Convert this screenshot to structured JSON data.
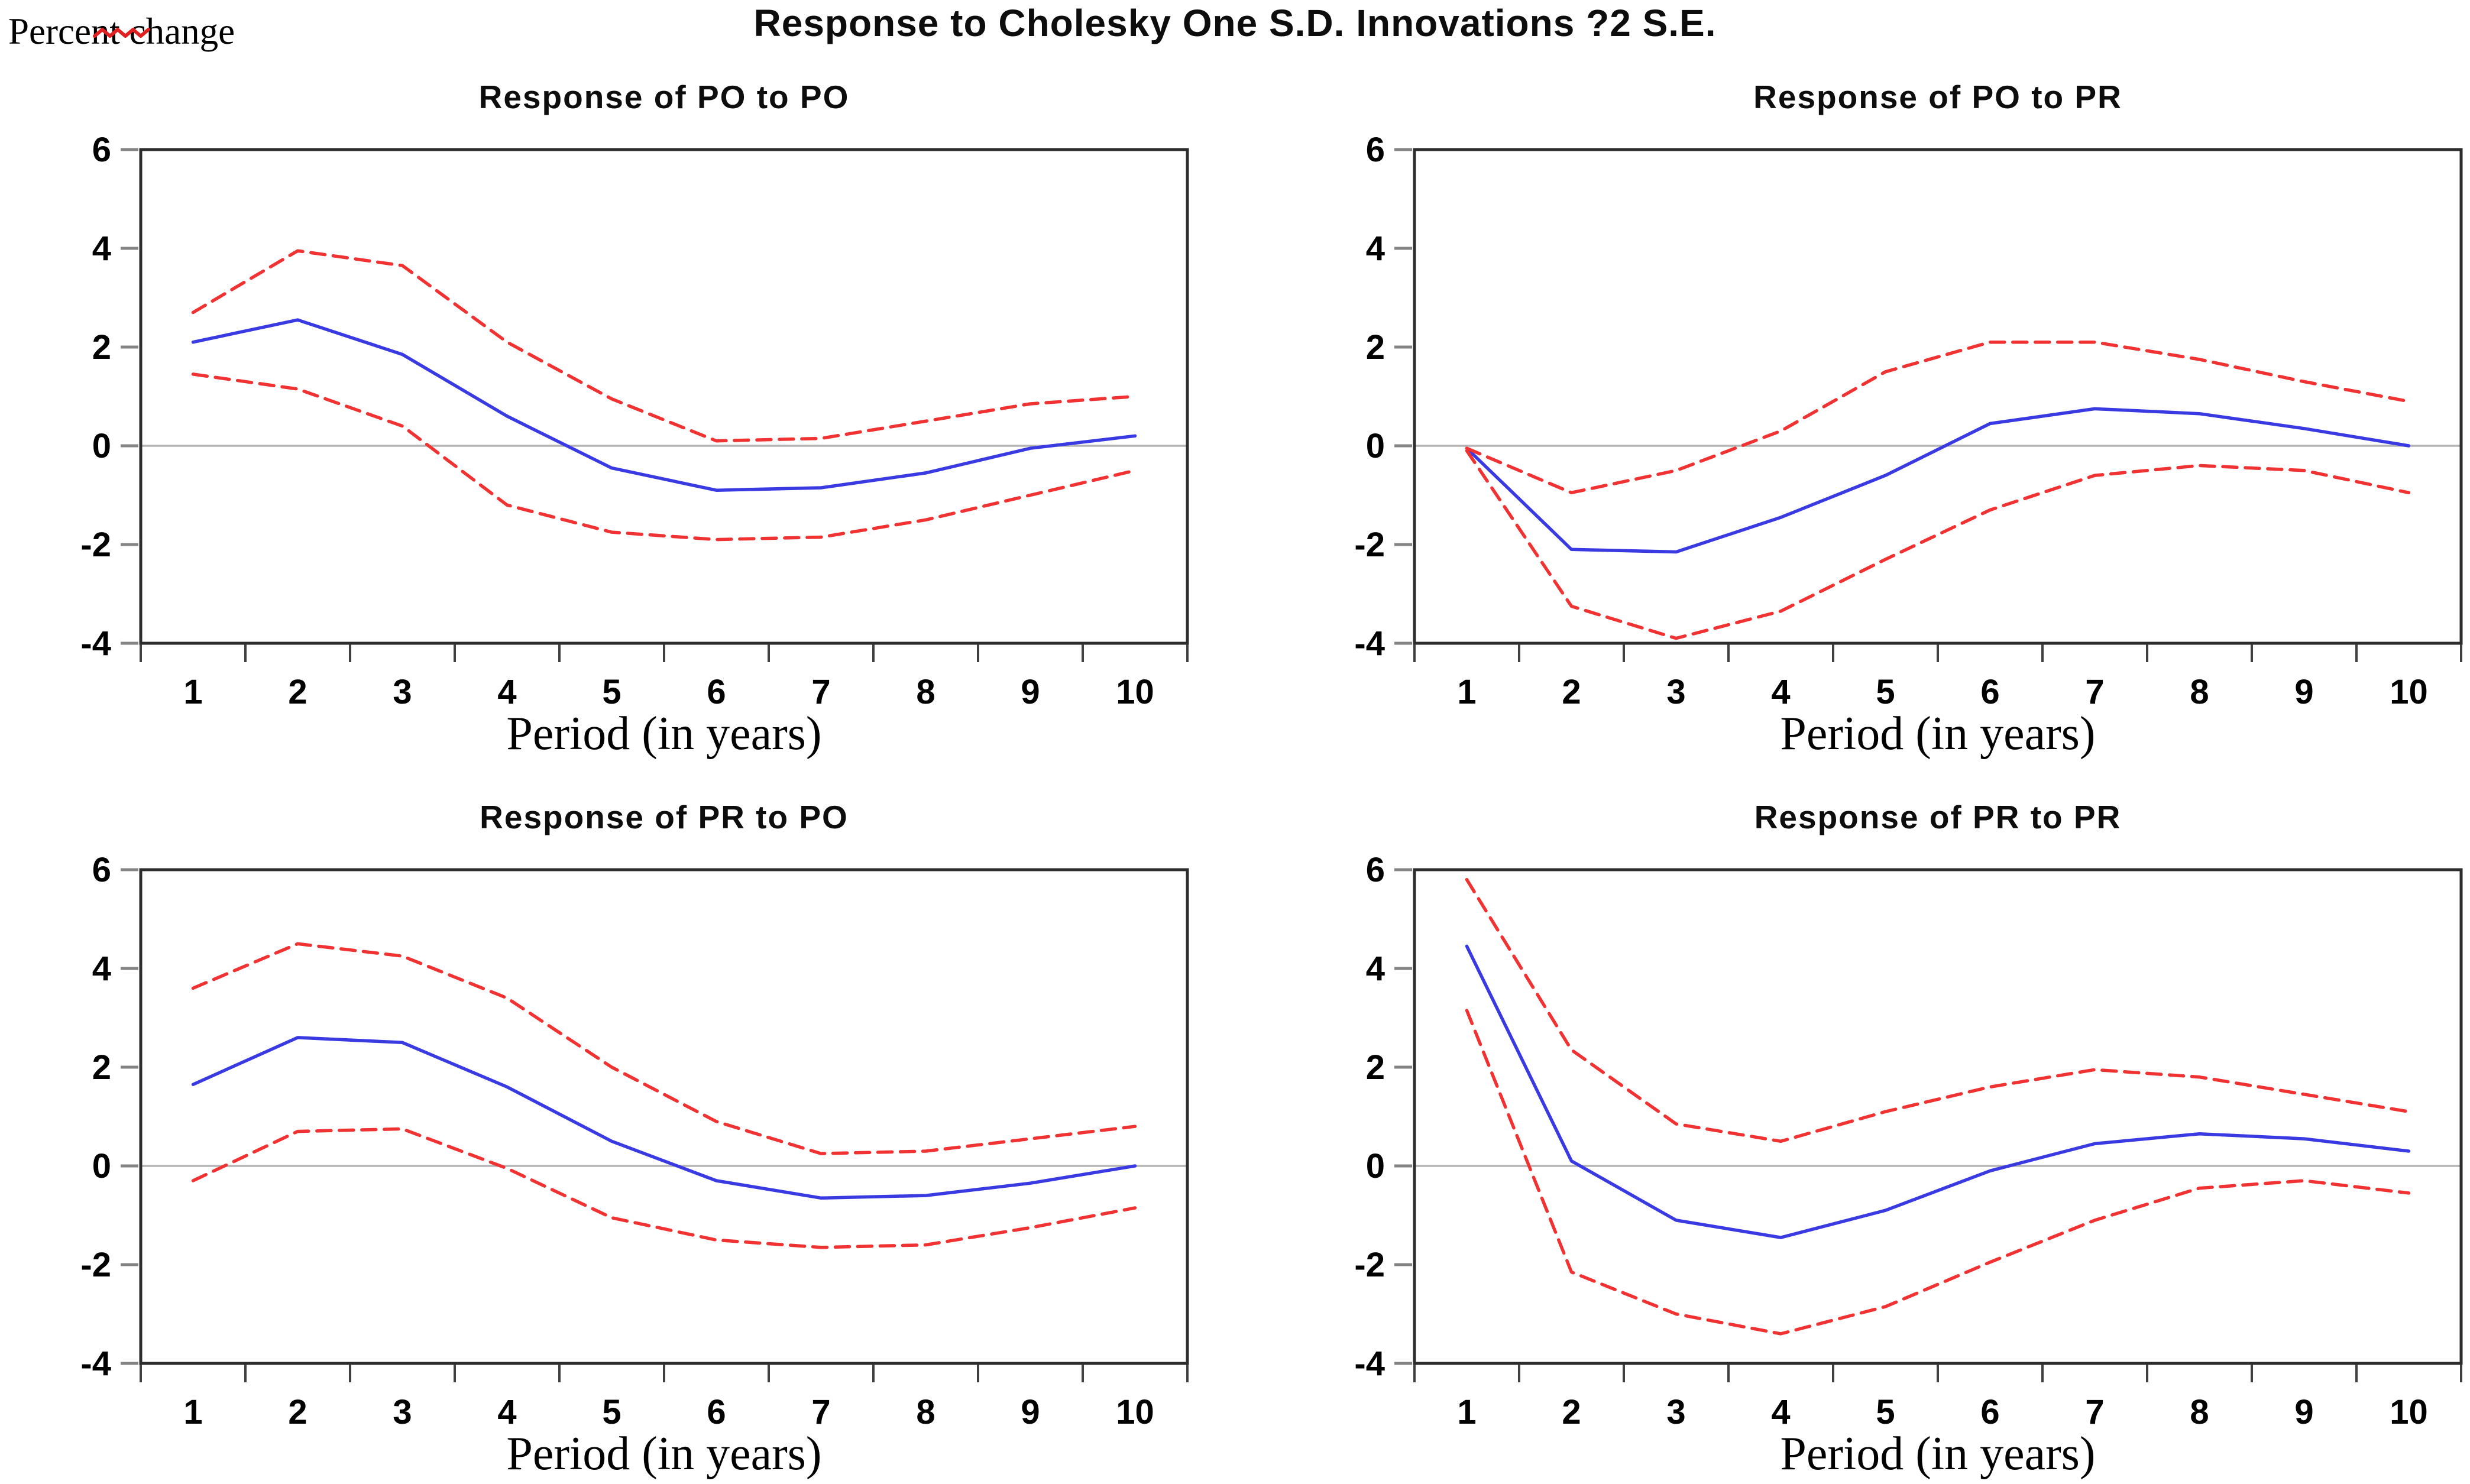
{
  "header": {
    "title": "Response to Cholesky One S.D. Innovations ?2 S.E.",
    "y_axis_note": "Percent change"
  },
  "colors": {
    "response_line": "#3a3ae2",
    "band_line": "#f03232",
    "zero_line": "#b5b5b5",
    "frame": "#2d2d2d",
    "x_tick": "#404040",
    "y_tick": "#848484",
    "squiggle": "#e02020"
  },
  "chart_data": [
    {
      "type": "line",
      "title": "Response of PO to PO",
      "xlabel": "Period (in years)",
      "x": [
        1,
        2,
        3,
        4,
        5,
        6,
        7,
        8,
        9,
        10
      ],
      "xlim": [
        0.5,
        10.5
      ],
      "ylim": [
        -4,
        6
      ],
      "yticks": [
        6,
        4,
        2,
        0,
        -2,
        -4
      ],
      "grid": false,
      "legend": "none",
      "zero_line": true,
      "series": [
        {
          "name": "response-mean",
          "style": "solid",
          "color": "#3a3ae2",
          "values": [
            2.1,
            2.55,
            1.85,
            0.6,
            -0.45,
            -0.9,
            -0.85,
            -0.55,
            -0.05,
            0.2
          ]
        },
        {
          "name": "upper-2se-band",
          "style": "dashed",
          "color": "#f03232",
          "values": [
            2.7,
            3.95,
            3.65,
            2.1,
            0.95,
            0.1,
            0.15,
            0.5,
            0.85,
            1.0
          ]
        },
        {
          "name": "lower-2se-band",
          "style": "dashed",
          "color": "#f03232",
          "values": [
            1.45,
            1.15,
            0.4,
            -1.2,
            -1.75,
            -1.9,
            -1.85,
            -1.5,
            -1.0,
            -0.5
          ]
        }
      ]
    },
    {
      "type": "line",
      "title": "Response of PO to PR",
      "xlabel": "Period (in years)",
      "x": [
        1,
        2,
        3,
        4,
        5,
        6,
        7,
        8,
        9,
        10
      ],
      "xlim": [
        0.5,
        10.5
      ],
      "ylim": [
        -4,
        6
      ],
      "yticks": [
        6,
        4,
        2,
        0,
        -2,
        -4
      ],
      "grid": false,
      "legend": "none",
      "zero_line": true,
      "series": [
        {
          "name": "response-mean",
          "style": "solid",
          "color": "#3a3ae2",
          "values": [
            -0.05,
            -2.1,
            -2.15,
            -1.45,
            -0.6,
            0.45,
            0.75,
            0.65,
            0.35,
            0.0
          ]
        },
        {
          "name": "upper-2se-band",
          "style": "dashed",
          "color": "#f03232",
          "values": [
            -0.05,
            -0.95,
            -0.5,
            0.3,
            1.5,
            2.1,
            2.1,
            1.75,
            1.3,
            0.9
          ]
        },
        {
          "name": "lower-2se-band",
          "style": "dashed",
          "color": "#f03232",
          "values": [
            -0.1,
            -3.25,
            -3.9,
            -3.35,
            -2.3,
            -1.3,
            -0.6,
            -0.4,
            -0.5,
            -0.95
          ]
        }
      ]
    },
    {
      "type": "line",
      "title": "Response of PR to PO",
      "xlabel": "Period (in years)",
      "x": [
        1,
        2,
        3,
        4,
        5,
        6,
        7,
        8,
        9,
        10
      ],
      "xlim": [
        0.5,
        10.5
      ],
      "ylim": [
        -4,
        6
      ],
      "yticks": [
        6,
        4,
        2,
        0,
        -2,
        -4
      ],
      "grid": false,
      "legend": "none",
      "zero_line": true,
      "series": [
        {
          "name": "response-mean",
          "style": "solid",
          "color": "#3a3ae2",
          "values": [
            1.65,
            2.6,
            2.5,
            1.6,
            0.5,
            -0.3,
            -0.65,
            -0.6,
            -0.35,
            0.0
          ]
        },
        {
          "name": "upper-2se-band",
          "style": "dashed",
          "color": "#f03232",
          "values": [
            3.6,
            4.5,
            4.25,
            3.4,
            2.0,
            0.9,
            0.25,
            0.3,
            0.55,
            0.8
          ]
        },
        {
          "name": "lower-2se-band",
          "style": "dashed",
          "color": "#f03232",
          "values": [
            -0.3,
            0.7,
            0.75,
            -0.05,
            -1.05,
            -1.5,
            -1.65,
            -1.6,
            -1.25,
            -0.85
          ]
        }
      ]
    },
    {
      "type": "line",
      "title": "Response of PR to PR",
      "xlabel": "Period (in years)",
      "x": [
        1,
        2,
        3,
        4,
        5,
        6,
        7,
        8,
        9,
        10
      ],
      "xlim": [
        0.5,
        10.5
      ],
      "ylim": [
        -4,
        6
      ],
      "yticks": [
        6,
        4,
        2,
        0,
        -2,
        -4
      ],
      "grid": false,
      "legend": "none",
      "zero_line": true,
      "series": [
        {
          "name": "response-mean",
          "style": "solid",
          "color": "#3a3ae2",
          "values": [
            4.45,
            0.1,
            -1.1,
            -1.45,
            -0.9,
            -0.1,
            0.45,
            0.65,
            0.55,
            0.3
          ]
        },
        {
          "name": "upper-2se-band",
          "style": "dashed",
          "color": "#f03232",
          "values": [
            5.8,
            2.35,
            0.85,
            0.5,
            1.1,
            1.6,
            1.95,
            1.8,
            1.45,
            1.1
          ]
        },
        {
          "name": "lower-2se-band",
          "style": "dashed",
          "color": "#f03232",
          "values": [
            3.15,
            -2.15,
            -3.0,
            -3.4,
            -2.85,
            -1.95,
            -1.1,
            -0.45,
            -0.3,
            -0.55
          ]
        }
      ]
    }
  ]
}
